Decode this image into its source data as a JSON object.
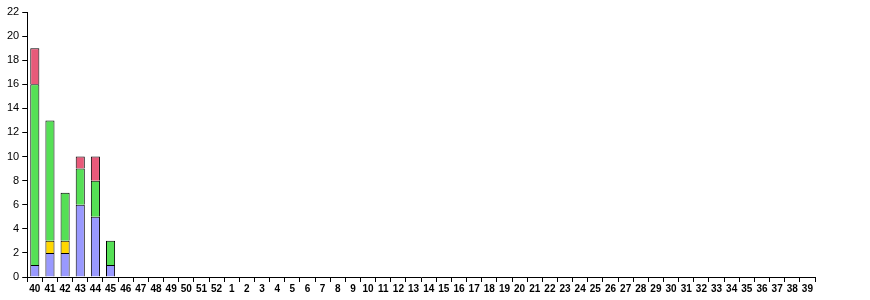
{
  "chart_data": {
    "type": "bar",
    "stacked": true,
    "grid": false,
    "categories": [
      "40",
      "41",
      "42",
      "43",
      "44",
      "45",
      "46",
      "47",
      "48",
      "49",
      "50",
      "51",
      "52",
      "1",
      "2",
      "3",
      "4",
      "5",
      "6",
      "7",
      "8",
      "9",
      "10",
      "11",
      "12",
      "13",
      "14",
      "15",
      "16",
      "17",
      "18",
      "19",
      "20",
      "21",
      "22",
      "23",
      "24",
      "25",
      "26",
      "27",
      "28",
      "29",
      "30",
      "31",
      "32",
      "33",
      "34",
      "35",
      "36",
      "37",
      "38",
      "39"
    ],
    "series": [
      {
        "color": "#9999ff",
        "values": [
          1,
          2,
          2,
          6,
          5,
          1,
          0,
          0,
          0,
          0,
          0,
          0,
          0,
          0,
          0,
          0,
          0,
          0,
          0,
          0,
          0,
          0,
          0,
          0,
          0,
          0,
          0,
          0,
          0,
          0,
          0,
          0,
          0,
          0,
          0,
          0,
          0,
          0,
          0,
          0,
          0,
          0,
          0,
          0,
          0,
          0,
          0,
          0,
          0,
          0,
          0,
          0
        ]
      },
      {
        "color": "#ffd700",
        "values": [
          0,
          1,
          1,
          0,
          0,
          0,
          0,
          0,
          0,
          0,
          0,
          0,
          0,
          0,
          0,
          0,
          0,
          0,
          0,
          0,
          0,
          0,
          0,
          0,
          0,
          0,
          0,
          0,
          0,
          0,
          0,
          0,
          0,
          0,
          0,
          0,
          0,
          0,
          0,
          0,
          0,
          0,
          0,
          0,
          0,
          0,
          0,
          0,
          0,
          0,
          0,
          0
        ]
      },
      {
        "color": "#55e055",
        "values": [
          15,
          10,
          4,
          3,
          3,
          2,
          0,
          0,
          0,
          0,
          0,
          0,
          0,
          0,
          0,
          0,
          0,
          0,
          0,
          0,
          0,
          0,
          0,
          0,
          0,
          0,
          0,
          0,
          0,
          0,
          0,
          0,
          0,
          0,
          0,
          0,
          0,
          0,
          0,
          0,
          0,
          0,
          0,
          0,
          0,
          0,
          0,
          0,
          0,
          0,
          0,
          0
        ]
      },
      {
        "color": "#e85a7a",
        "values": [
          3,
          0,
          0,
          1,
          2,
          0,
          0,
          0,
          0,
          0,
          0,
          0,
          0,
          0,
          0,
          0,
          0,
          0,
          0,
          0,
          0,
          0,
          0,
          0,
          0,
          0,
          0,
          0,
          0,
          0,
          0,
          0,
          0,
          0,
          0,
          0,
          0,
          0,
          0,
          0,
          0,
          0,
          0,
          0,
          0,
          0,
          0,
          0,
          0,
          0,
          0,
          0
        ]
      }
    ],
    "ylim": [
      0,
      22
    ],
    "yticks": [
      0,
      2,
      4,
      6,
      8,
      10,
      12,
      14,
      16,
      18,
      20,
      22
    ]
  }
}
